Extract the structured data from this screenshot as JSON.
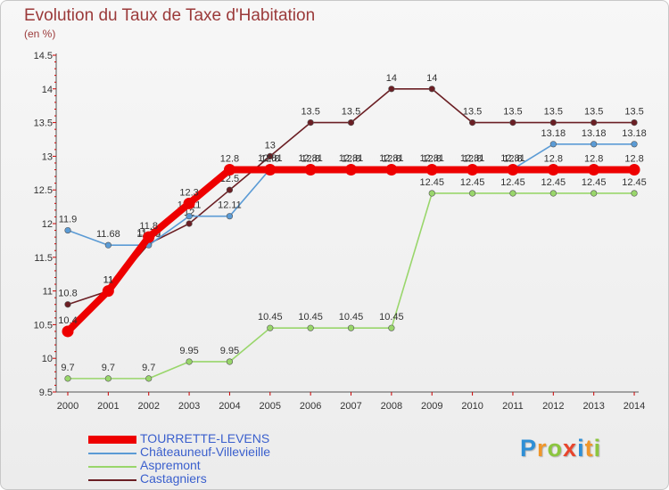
{
  "header": {
    "title": "Evolution du Taux de Taxe d'Habitation",
    "subtitle": "(en %)"
  },
  "chart_data": {
    "type": "line",
    "title": "Evolution du Taux de Taxe d'Habitation",
    "ylabel": "(en %)",
    "xlabel": "",
    "ylim": [
      9.5,
      14.5
    ],
    "yticks": [
      "9.5",
      "10",
      "10.5",
      "11",
      "11.5",
      "12",
      "12.5",
      "13",
      "13.5",
      "14",
      "14.5"
    ],
    "categories": [
      "2000",
      "2001",
      "2002",
      "2003",
      "2004",
      "2005",
      "2006",
      "2007",
      "2008",
      "2009",
      "2010",
      "2011",
      "2012",
      "2013",
      "2014"
    ],
    "series": [
      {
        "name": "Castagniers",
        "color": "#6b1f24",
        "values": [
          10.8,
          11,
          11.7,
          12,
          12.5,
          13,
          13.5,
          13.5,
          14,
          14,
          13.5,
          13.5,
          13.5,
          13.5,
          13.5
        ],
        "labels": [
          "10.8",
          "11",
          "11.70",
          "12",
          "12.5",
          "13",
          "13.5",
          "13.5",
          "14",
          "14",
          "13.5",
          "13.5",
          "13.5",
          "13.5",
          "13.5"
        ]
      },
      {
        "name": "Aspremont",
        "color": "#99d66b",
        "values": [
          9.7,
          9.7,
          9.7,
          9.95,
          9.95,
          10.45,
          10.45,
          10.45,
          10.45,
          12.45,
          12.45,
          12.45,
          12.45,
          12.45,
          12.45
        ],
        "labels": [
          "9.7",
          "9.7",
          "9.7",
          "9.95",
          "9.95",
          "10.45",
          "10.45",
          "10.45",
          "10.45",
          "12.45",
          "12.45",
          "12.45",
          "12.45",
          "12.45",
          "12.45"
        ]
      },
      {
        "name": "Châteauneuf-Villevieille",
        "color": "#5b9bd5",
        "values": [
          11.9,
          11.68,
          11.68,
          12.11,
          12.11,
          12.81,
          12.81,
          12.81,
          12.81,
          12.81,
          12.81,
          12.81,
          13.18,
          13.18,
          13.18
        ],
        "labels": [
          "11.9",
          "11.68",
          "11.68",
          "12.11",
          "12.11",
          "12.81",
          "12.81",
          "12.81",
          "12.81",
          "12.81",
          "12.81",
          "12.81",
          "13.18",
          "13.18",
          "13.18"
        ]
      },
      {
        "name": "TOURRETTE-LEVENS",
        "color": "#ee0000",
        "values": [
          10.4,
          11,
          11.8,
          12.3,
          12.8,
          12.8,
          12.8,
          12.8,
          12.8,
          12.8,
          12.8,
          12.8,
          12.8,
          12.8,
          12.8
        ],
        "labels": [
          "10.4",
          "11",
          "11.8",
          "12.3",
          "12.8",
          "12.8",
          "12.8",
          "12.8",
          "12.8",
          "12.8",
          "12.8",
          "12.8",
          "12.8",
          "12.8",
          "12.8"
        ]
      }
    ],
    "legend": [
      {
        "name": "TOURRETTE-LEVENS",
        "color": "#ee0000",
        "text_color": "#3a5fcd"
      },
      {
        "name": "Châteauneuf-Villevieille",
        "color": "#5b9bd5",
        "text_color": "#3a5fcd"
      },
      {
        "name": "Aspremont",
        "color": "#99d66b",
        "text_color": "#3a5fcd"
      },
      {
        "name": "Castagniers",
        "color": "#6b1f24",
        "text_color": "#3a5fcd"
      }
    ],
    "legend_position": "bottom-left",
    "grid": false
  },
  "logo": {
    "letters": [
      "P",
      "r",
      "o",
      "x",
      "i",
      "t",
      "i"
    ],
    "colors": [
      "#2e8fd6",
      "#f0962a",
      "#8cc63f",
      "#e8452c",
      "#2e8fd6",
      "#f0962a",
      "#8cc63f"
    ]
  }
}
